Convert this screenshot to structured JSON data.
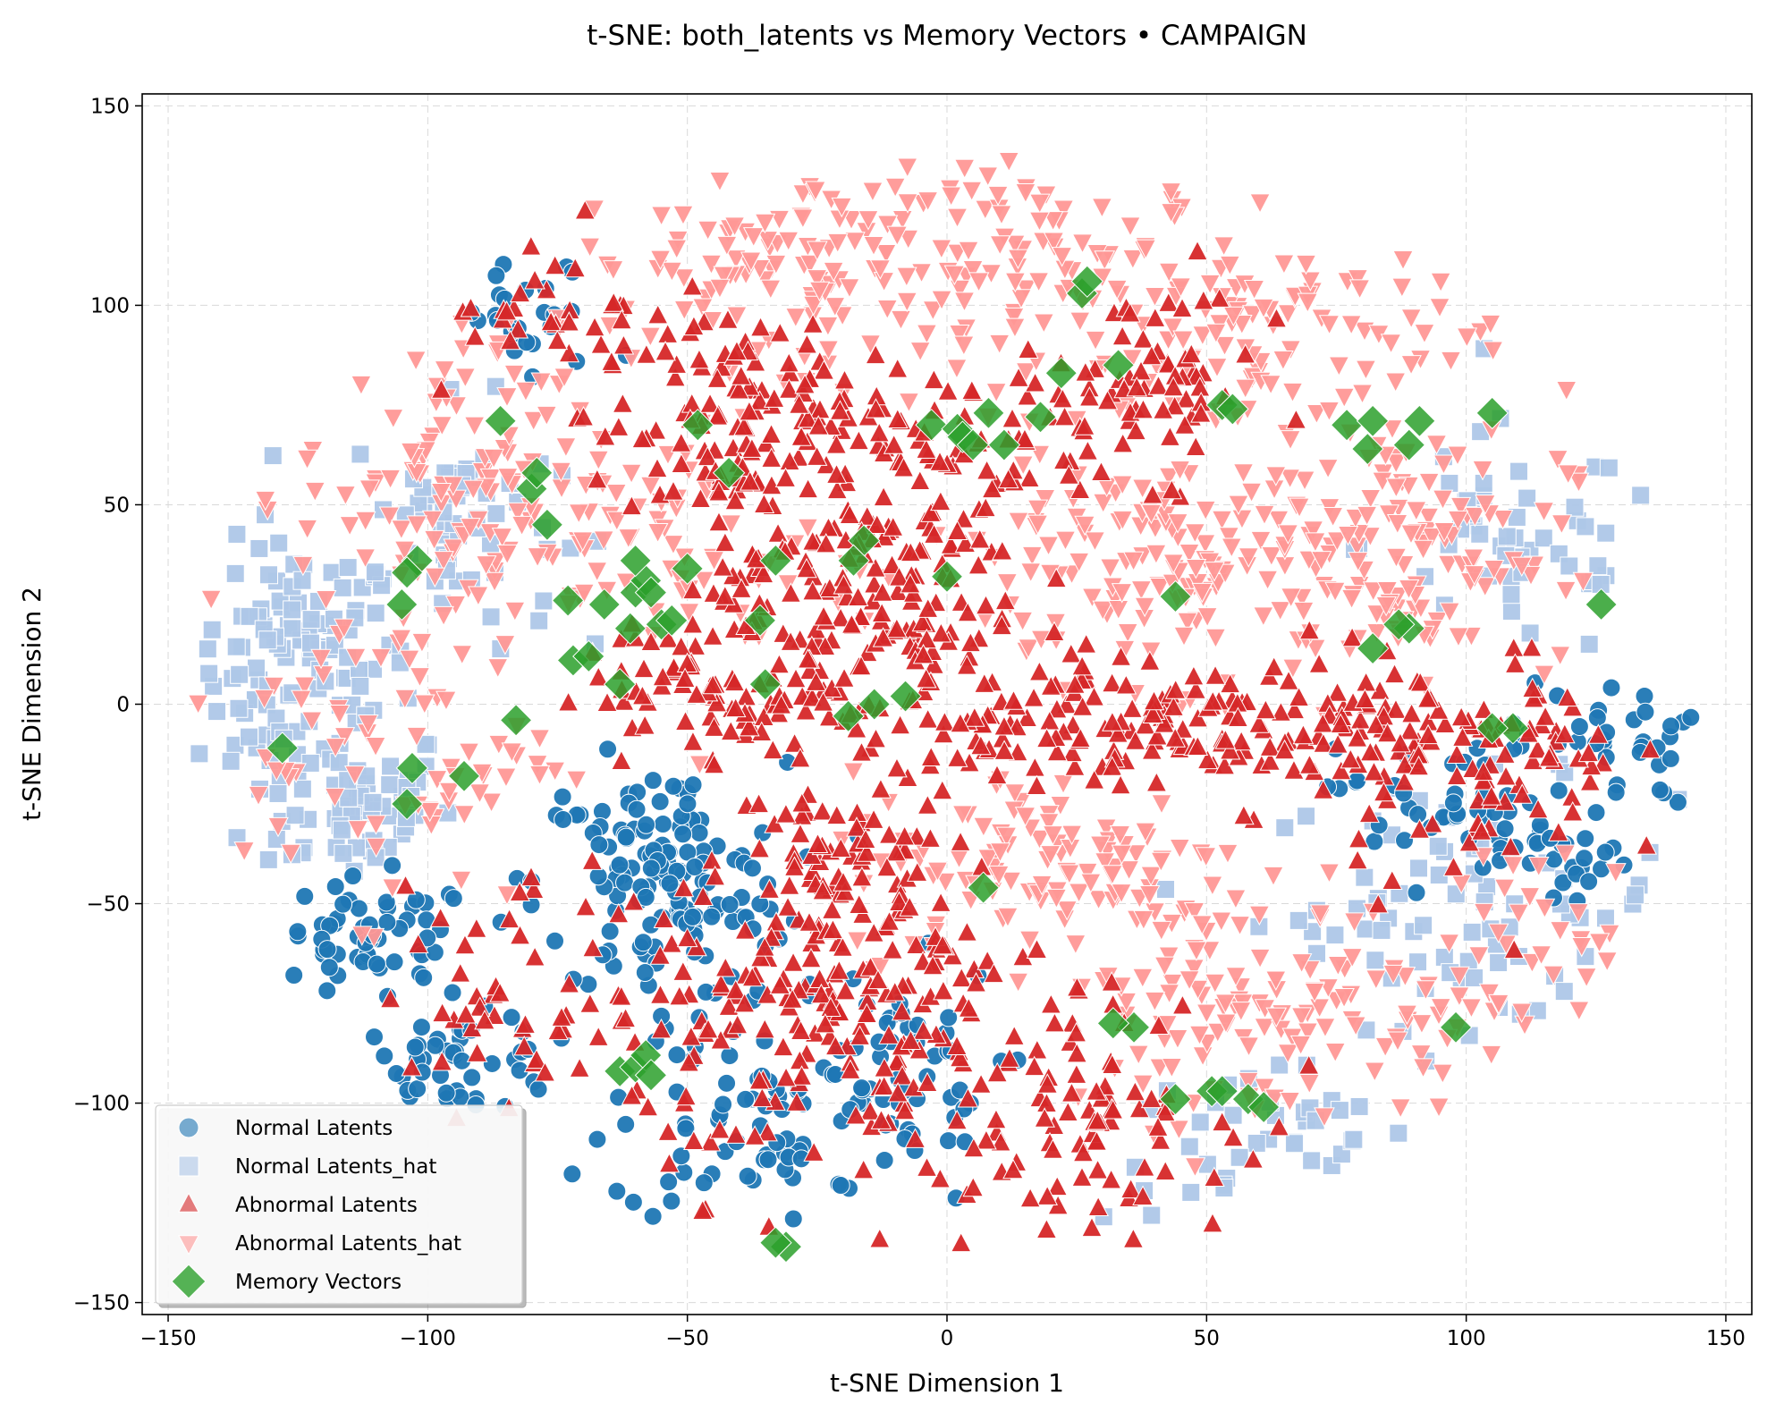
{
  "chart_data": {
    "type": "scatter",
    "title": "t-SNE: both_latents vs Memory Vectors • CAMPAIGN",
    "xlabel": "t-SNE Dimension 1",
    "ylabel": "t-SNE Dimension 2",
    "xlim": [
      -155,
      155
    ],
    "ylim": [
      -153,
      153
    ],
    "xticks": [
      -150,
      -100,
      -50,
      0,
      50,
      100,
      150
    ],
    "yticks": [
      -150,
      -100,
      -50,
      0,
      50,
      100,
      150
    ],
    "xtick_labels": [
      "−150",
      "−100",
      "−50",
      "0",
      "50",
      "100",
      "150"
    ],
    "ytick_labels": [
      "−150",
      "−100",
      "−50",
      "0",
      "50",
      "100",
      "150"
    ],
    "grid": true,
    "legend_position": "lower-left",
    "series": [
      {
        "name": "Normal Latents",
        "marker": "circle",
        "color": "#1f77b4",
        "clusters": [
          {
            "cx": -110,
            "cy": -60,
            "sx": 10,
            "sy": 8,
            "n": 60
          },
          {
            "cx": -95,
            "cy": -90,
            "sx": 10,
            "sy": 6,
            "n": 50
          },
          {
            "cx": -55,
            "cy": -45,
            "sx": 12,
            "sy": 15,
            "n": 140
          },
          {
            "cx": -35,
            "cy": -100,
            "sx": 15,
            "sy": 15,
            "n": 80
          },
          {
            "cx": -10,
            "cy": -95,
            "sx": 10,
            "sy": 15,
            "n": 40
          },
          {
            "cx": 130,
            "cy": -10,
            "sx": 10,
            "sy": 8,
            "n": 40
          },
          {
            "cx": 95,
            "cy": -25,
            "sx": 10,
            "sy": 10,
            "n": 40
          },
          {
            "cx": 120,
            "cy": -40,
            "sx": 6,
            "sy": 6,
            "n": 25
          },
          {
            "cx": -80,
            "cy": 95,
            "sx": 8,
            "sy": 8,
            "n": 25
          }
        ]
      },
      {
        "name": "Normal Latents_hat",
        "marker": "square",
        "color": "#aec7e8",
        "clusters": [
          {
            "cx": -125,
            "cy": 10,
            "sx": 10,
            "sy": 15,
            "n": 110
          },
          {
            "cx": -115,
            "cy": -25,
            "sx": 10,
            "sy": 10,
            "n": 60
          },
          {
            "cx": -95,
            "cy": 45,
            "sx": 10,
            "sy": 15,
            "n": 60
          },
          {
            "cx": 100,
            "cy": -50,
            "sx": 20,
            "sy": 15,
            "n": 80
          },
          {
            "cx": 60,
            "cy": -110,
            "sx": 15,
            "sy": 10,
            "n": 40
          },
          {
            "cx": 110,
            "cy": 40,
            "sx": 15,
            "sy": 15,
            "n": 50
          }
        ]
      },
      {
        "name": "Abnormal Latents",
        "marker": "triangle-up",
        "color": "#d62728",
        "clusters": [
          {
            "cx": -40,
            "cy": 70,
            "sx": 15,
            "sy": 15,
            "n": 150
          },
          {
            "cx": -15,
            "cy": 30,
            "sx": 15,
            "sy": 15,
            "n": 150
          },
          {
            "cx": -40,
            "cy": 5,
            "sx": 15,
            "sy": 10,
            "n": 100
          },
          {
            "cx": 40,
            "cy": -5,
            "sx": 30,
            "sy": 8,
            "n": 200
          },
          {
            "cx": 100,
            "cy": -15,
            "sx": 15,
            "sy": 15,
            "n": 100
          },
          {
            "cx": -20,
            "cy": -80,
            "sx": 20,
            "sy": 20,
            "n": 200
          },
          {
            "cx": 25,
            "cy": -100,
            "sx": 15,
            "sy": 15,
            "n": 90
          },
          {
            "cx": -80,
            "cy": -75,
            "sx": 15,
            "sy": 15,
            "n": 60
          },
          {
            "cx": 40,
            "cy": 80,
            "sx": 10,
            "sy": 12,
            "n": 60
          },
          {
            "cx": 10,
            "cy": 65,
            "sx": 15,
            "sy": 10,
            "n": 50
          },
          {
            "cx": -20,
            "cy": -40,
            "sx": 10,
            "sy": 10,
            "n": 60
          },
          {
            "cx": -75,
            "cy": 100,
            "sx": 10,
            "sy": 8,
            "n": 30
          }
        ]
      },
      {
        "name": "Abnormal Latents_hat",
        "marker": "triangle-down",
        "color": "#ff9896",
        "clusters": [
          {
            "cx": -30,
            "cy": 110,
            "sx": 20,
            "sy": 12,
            "n": 120
          },
          {
            "cx": 20,
            "cy": 110,
            "sx": 20,
            "sy": 12,
            "n": 100
          },
          {
            "cx": 65,
            "cy": 90,
            "sx": 20,
            "sy": 15,
            "n": 100
          },
          {
            "cx": 45,
            "cy": 35,
            "sx": 25,
            "sy": 15,
            "n": 180
          },
          {
            "cx": 90,
            "cy": 40,
            "sx": 15,
            "sy": 15,
            "n": 100
          },
          {
            "cx": -95,
            "cy": 55,
            "sx": 15,
            "sy": 20,
            "n": 120
          },
          {
            "cx": -105,
            "cy": -10,
            "sx": 15,
            "sy": 20,
            "n": 80
          },
          {
            "cx": 20,
            "cy": -40,
            "sx": 20,
            "sy": 12,
            "n": 120
          },
          {
            "cx": 60,
            "cy": -75,
            "sx": 20,
            "sy": 15,
            "n": 120
          },
          {
            "cx": 110,
            "cy": -65,
            "sx": 15,
            "sy": 15,
            "n": 60
          },
          {
            "cx": -55,
            "cy": 40,
            "sx": 15,
            "sy": 15,
            "n": 60
          }
        ]
      },
      {
        "name": "Memory Vectors",
        "marker": "diamond",
        "color": "#2ca02c",
        "x": [
          -128,
          -103,
          -104,
          -93,
          -83,
          -105,
          -102,
          -104,
          -80,
          -79,
          -77,
          -86,
          -72,
          -69,
          -73,
          -66,
          -60,
          -58,
          -57,
          -61,
          -55,
          -60,
          -53,
          -63,
          -50,
          -48,
          -42,
          -36,
          -35,
          -33,
          -16,
          -14,
          -18,
          -19,
          -8,
          0,
          -3,
          2,
          3,
          5,
          8,
          11,
          18,
          22,
          26,
          27,
          33,
          44,
          53,
          55,
          77,
          81,
          82,
          89,
          91,
          105,
          126,
          109,
          105,
          89,
          82,
          87,
          98,
          36,
          32,
          44,
          51,
          53,
          58,
          61,
          -63,
          -60,
          -58,
          -57,
          -31,
          7,
          -33
        ],
        "y": [
          -11,
          -16,
          -25,
          -18,
          -4,
          25,
          36,
          33,
          54,
          58,
          45,
          71,
          11,
          12,
          26,
          25,
          28,
          31,
          28,
          19,
          20,
          36,
          21,
          5,
          34,
          70,
          58,
          21,
          5,
          36,
          41,
          0,
          36,
          -3,
          2,
          32,
          70,
          69,
          67,
          65,
          73,
          65,
          72,
          83,
          103,
          106,
          85,
          27,
          75,
          74,
          70,
          64,
          71,
          65,
          71,
          73,
          25,
          -6,
          -6,
          19,
          14,
          20,
          -81,
          -81,
          -80,
          -99,
          -97,
          -97,
          -99,
          -101,
          -92,
          -91,
          -88,
          -93,
          -136,
          -46,
          -135
        ]
      }
    ]
  }
}
